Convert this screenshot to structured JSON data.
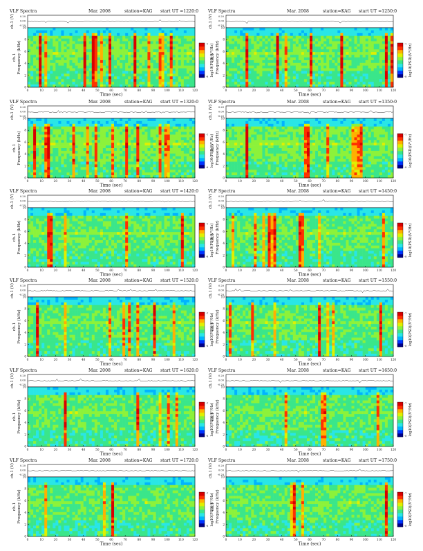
{
  "colors": {
    "colormap": [
      "#00008b",
      "#0033ff",
      "#00b4ff",
      "#29e6e6",
      "#3ae68a",
      "#8cf23a",
      "#e0f000",
      "#ffb000",
      "#ff3000",
      "#d80000"
    ],
    "axis": "#000000",
    "trace": "#000000"
  },
  "chart_data": [
    {
      "type": "heatmap",
      "header": {
        "left": "VLF Spectra",
        "center": "Mar. 2008",
        "station": "station=KAG",
        "start": "start  UT  =1220:0"
      },
      "ylabel_top": "ch.1 (V)",
      "top_ticks": [
        "0.20",
        "0.00",
        "-0.20"
      ],
      "ylabel": "ch.1\nFrequency  (kHz)",
      "y_ticks": [
        "0",
        "2",
        "4",
        "6",
        "8",
        "10"
      ],
      "ylim": [
        0,
        10
      ],
      "xlabel": "Time  (sec)",
      "x_ticks": [
        "0",
        "10",
        "20",
        "30",
        "40",
        "50",
        "60",
        "70",
        "80",
        "90",
        "100",
        "110",
        "120"
      ],
      "xlim": [
        0,
        120
      ],
      "colorbar_label": "log10(PSD)(V²/Hz)",
      "colorbar_ticks": [
        "-7",
        "-8"
      ],
      "intensity": 0.75
    },
    {
      "type": "heatmap",
      "header": {
        "left": "VLF Spectra",
        "center": "Mar. 2008",
        "station": "station=KAG",
        "start": "start  UT  =1250:0"
      },
      "ylabel_top": "ch.1 (V)",
      "top_ticks": [
        "0.20",
        "0.00",
        "-0.20"
      ],
      "ylabel": "ch.1\nFrequency  (kHz)",
      "y_ticks": [
        "0",
        "2",
        "4",
        "6",
        "8",
        "10"
      ],
      "ylim": [
        0,
        10
      ],
      "xlabel": "Time  (sec)",
      "x_ticks": [
        "0",
        "10",
        "20",
        "30",
        "40",
        "50",
        "60",
        "70",
        "80",
        "90",
        "100",
        "110",
        "120"
      ],
      "xlim": [
        0,
        120
      ],
      "colorbar_label": "log10(PSD)(V²/Hz)",
      "colorbar_ticks": [
        "-7",
        "-8"
      ],
      "intensity": 0.6
    },
    {
      "type": "heatmap",
      "header": {
        "left": "VLF Spectra",
        "center": "Mar. 2008",
        "station": "station=KAG",
        "start": "start  UT  =1320:0"
      },
      "ylabel_top": "ch.1 (V)",
      "top_ticks": [
        "0.20",
        "0.00",
        "-0.20"
      ],
      "ylabel": "ch.1\nFrequency  (kHz)",
      "y_ticks": [
        "0",
        "2",
        "4",
        "6",
        "8",
        "10"
      ],
      "ylim": [
        0,
        10
      ],
      "xlabel": "Time  (sec)",
      "x_ticks": [
        "0",
        "10",
        "20",
        "30",
        "40",
        "50",
        "60",
        "70",
        "80",
        "90",
        "100",
        "110",
        "120"
      ],
      "xlim": [
        0,
        120
      ],
      "colorbar_label": "log10(PSD)(V²/Hz)",
      "colorbar_ticks": [
        "-7",
        "-8"
      ],
      "intensity": 0.85
    },
    {
      "type": "heatmap",
      "header": {
        "left": "VLF Spectra",
        "center": "Mar. 2008",
        "station": "station=KAG",
        "start": "start  UT  =1350:0"
      },
      "ylabel_top": "ch.1 (V)",
      "top_ticks": [
        "0.20",
        "0.00",
        "-0.20"
      ],
      "ylabel": "ch.1\nFrequency  (kHz)",
      "y_ticks": [
        "0",
        "2",
        "4",
        "6",
        "8",
        "10"
      ],
      "ylim": [
        0,
        10
      ],
      "xlabel": "Time  (sec)",
      "x_ticks": [
        "0",
        "10",
        "20",
        "30",
        "40",
        "50",
        "60",
        "70",
        "80",
        "90",
        "100",
        "110",
        "120"
      ],
      "xlim": [
        0,
        120
      ],
      "colorbar_label": "log10(PSD)(V²/Hz)",
      "colorbar_ticks": [
        "-7",
        "-8"
      ],
      "intensity": 0.75
    },
    {
      "type": "heatmap",
      "header": {
        "left": "VLF Spectra",
        "center": "Mar. 2008",
        "station": "station=KAG",
        "start": "start  UT  =1420:0"
      },
      "ylabel_top": "ch.1 (V)",
      "top_ticks": [
        "0.20",
        "0.00",
        "-0.20"
      ],
      "ylabel": "ch.1\nFrequency  (kHz)",
      "y_ticks": [
        "0",
        "2",
        "4",
        "6",
        "8",
        "10"
      ],
      "ylim": [
        0,
        10
      ],
      "xlabel": "Time  (sec)",
      "x_ticks": [
        "0",
        "10",
        "20",
        "30",
        "40",
        "50",
        "60",
        "70",
        "80",
        "90",
        "100",
        "110",
        "120"
      ],
      "xlim": [
        0,
        120
      ],
      "colorbar_label": "log10(PSD)(V²/Hz)",
      "colorbar_ticks": [
        "-7",
        "-8"
      ],
      "intensity": 0.5
    },
    {
      "type": "heatmap",
      "header": {
        "left": "VLF Spectra",
        "center": "Mar. 2008",
        "station": "station=KAG",
        "start": "start  UT  =1450:0"
      },
      "ylabel_top": "ch.1 (V)",
      "top_ticks": [
        "0.20",
        "0.00",
        "-0.20"
      ],
      "ylabel": "ch.1\nFrequency  (kHz)",
      "y_ticks": [
        "0",
        "2",
        "4",
        "6",
        "8",
        "10"
      ],
      "ylim": [
        0,
        10
      ],
      "xlabel": "Time  (sec)",
      "x_ticks": [
        "0",
        "10",
        "20",
        "30",
        "40",
        "50",
        "60",
        "70",
        "80",
        "90",
        "100",
        "110",
        "120"
      ],
      "xlim": [
        0,
        120
      ],
      "colorbar_label": "log10(PSD)(V²/Hz)",
      "colorbar_ticks": [
        "-7",
        "-8"
      ],
      "intensity": 0.5
    },
    {
      "type": "heatmap",
      "header": {
        "left": "VLF Spectra",
        "center": "Mar. 2008",
        "station": "station=KAG",
        "start": "start  UT  =1520:0"
      },
      "ylabel_top": "ch.1 (V)",
      "top_ticks": [
        "0.20",
        "0.00",
        "-0.20"
      ],
      "ylabel": "ch.1\nFrequency  (kHz)",
      "y_ticks": [
        "0",
        "2",
        "4",
        "6",
        "8",
        "10"
      ],
      "ylim": [
        0,
        10
      ],
      "xlabel": "Time  (sec)",
      "x_ticks": [
        "0",
        "10",
        "20",
        "30",
        "40",
        "50",
        "60",
        "70",
        "80",
        "90",
        "100",
        "110",
        "120"
      ],
      "xlim": [
        0,
        120
      ],
      "colorbar_label": "log10(PSD)(V²/Hz)",
      "colorbar_ticks": [
        "-7",
        "-8"
      ],
      "intensity": 0.4
    },
    {
      "type": "heatmap",
      "header": {
        "left": "VLF Spectra",
        "center": "Mar. 2008",
        "station": "station=KAG",
        "start": "start  UT  =1550:0"
      },
      "ylabel_top": "ch.1 (V)",
      "top_ticks": [
        "0.20",
        "0.00",
        "-0.20"
      ],
      "ylabel": "ch.1\nFrequency  (kHz)",
      "y_ticks": [
        "0",
        "2",
        "4",
        "6",
        "8",
        "10"
      ],
      "ylim": [
        0,
        10
      ],
      "xlabel": "Time  (sec)",
      "x_ticks": [
        "0",
        "10",
        "20",
        "30",
        "40",
        "50",
        "60",
        "70",
        "80",
        "90",
        "100",
        "110",
        "120"
      ],
      "xlim": [
        0,
        120
      ],
      "colorbar_label": "log10(PSD)(V²/Hz)",
      "colorbar_ticks": [
        "-7",
        "-8"
      ],
      "intensity": 0.45
    },
    {
      "type": "heatmap",
      "header": {
        "left": "VLF Spectra",
        "center": "Mar. 2008",
        "station": "station=KAG",
        "start": "start  UT  =1620:0"
      },
      "ylabel_top": "ch.1 (V)",
      "top_ticks": [
        "0.20",
        "0.00",
        "-0.20"
      ],
      "ylabel": "ch.1\nFrequency  (kHz)",
      "y_ticks": [
        "0",
        "2",
        "4",
        "6",
        "8",
        "10"
      ],
      "ylim": [
        0,
        10
      ],
      "xlabel": "Time  (sec)",
      "x_ticks": [
        "0",
        "10",
        "20",
        "30",
        "40",
        "50",
        "60",
        "70",
        "80",
        "90",
        "100",
        "110",
        "120"
      ],
      "xlim": [
        0,
        120
      ],
      "colorbar_label": "log10(PSD)(V²/Hz)",
      "colorbar_ticks": [
        "-7",
        "-8"
      ],
      "intensity": 0.35
    },
    {
      "type": "heatmap",
      "header": {
        "left": "VLF Spectra",
        "center": "Mar. 2008",
        "station": "station=KAG",
        "start": "start  UT  =1650:0"
      },
      "ylabel_top": "ch.1 (V)",
      "top_ticks": [
        "0.20",
        "0.00",
        "-0.20"
      ],
      "ylabel": "ch.1\nFrequency  (kHz)",
      "y_ticks": [
        "0",
        "2",
        "4",
        "6",
        "8",
        "10"
      ],
      "ylim": [
        0,
        10
      ],
      "xlabel": "Time  (sec)",
      "x_ticks": [
        "0",
        "10",
        "20",
        "30",
        "40",
        "50",
        "60",
        "70",
        "80",
        "90",
        "100",
        "110",
        "120"
      ],
      "xlim": [
        0,
        120
      ],
      "colorbar_label": "log10(PSD)(V²/Hz)",
      "colorbar_ticks": [
        "-7",
        "-8"
      ],
      "intensity": 0.35
    },
    {
      "type": "heatmap",
      "header": {
        "left": "VLF Spectra",
        "center": "Mar. 2008",
        "station": "station=KAG",
        "start": "start  UT  =1720:0"
      },
      "ylabel_top": "ch.1 (V)",
      "top_ticks": [
        "0.20",
        "0.00",
        "-0.20"
      ],
      "ylabel": "ch.1\nFrequency  (kHz)",
      "y_ticks": [
        "0",
        "2",
        "4",
        "6",
        "8",
        "10"
      ],
      "ylim": [
        0,
        10
      ],
      "xlabel": "Time  (sec)",
      "x_ticks": [
        "0",
        "10",
        "20",
        "30",
        "40",
        "50",
        "60",
        "70",
        "80",
        "90",
        "100",
        "110",
        "120"
      ],
      "xlim": [
        0,
        120
      ],
      "colorbar_label": "log10(PSD)(V²/Hz)",
      "colorbar_ticks": [
        "-7",
        "-8"
      ],
      "intensity": 0.3
    },
    {
      "type": "heatmap",
      "header": {
        "left": "VLF Spectra",
        "center": "Mar. 2008",
        "station": "station=KAG",
        "start": "start  UT  =1750:0"
      },
      "ylabel_top": "ch.1 (V)",
      "top_ticks": [
        "0.20",
        "0.00",
        "-0.20"
      ],
      "ylabel": "ch.1\nFrequency  (kHz)",
      "y_ticks": [
        "0",
        "2",
        "4",
        "6",
        "8",
        "10"
      ],
      "ylim": [
        0,
        10
      ],
      "xlabel": "Time  (sec)",
      "x_ticks": [
        "0",
        "10",
        "20",
        "30",
        "40",
        "50",
        "60",
        "70",
        "80",
        "90",
        "100",
        "110",
        "120"
      ],
      "xlim": [
        0,
        120
      ],
      "colorbar_label": "log10(PSD)(V²/Hz)",
      "colorbar_ticks": [
        "-7",
        "-8"
      ],
      "intensity": 0.4
    }
  ]
}
